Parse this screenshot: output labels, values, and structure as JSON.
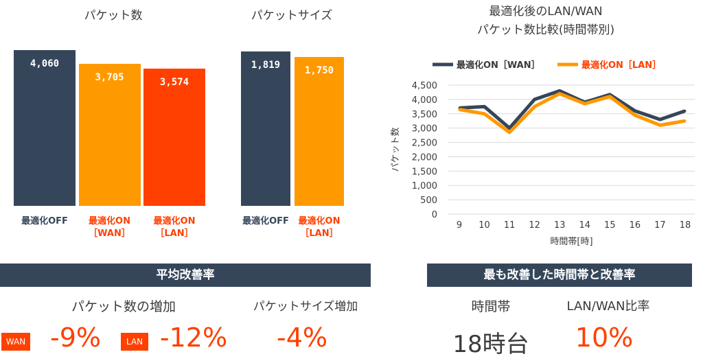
{
  "colors": {
    "dark": "#36465a",
    "orange": "#ff9900",
    "red": "#ff4000"
  },
  "chart_data": [
    {
      "type": "bar",
      "title": "パケット数",
      "categories": [
        "最適化OFF",
        "最適化ON\n［WAN］",
        "最適化ON\n［LAN］"
      ],
      "values": [
        4060,
        3705,
        3574
      ],
      "value_labels": [
        "4,060",
        "3,705",
        "3,574"
      ],
      "ylim": [
        0,
        4200
      ]
    },
    {
      "type": "bar",
      "title": "パケットサイズ",
      "categories": [
        "最適化OFF",
        "最適化ON\n［LAN］"
      ],
      "values": [
        1819,
        1750
      ],
      "value_labels": [
        "1,819",
        "1,750"
      ],
      "ylim": [
        0,
        1880
      ]
    },
    {
      "type": "line",
      "title": "最適化後のLAN/WAN\nパケット数比較(時間帯別)",
      "xlabel": "時間帯[時]",
      "ylabel": "パケット数",
      "x": [
        9,
        10,
        11,
        12,
        13,
        14,
        15,
        16,
        17,
        18
      ],
      "ylim": [
        0,
        4500
      ],
      "yticks": [
        "0",
        "500",
        "1,000",
        "1,500",
        "2,000",
        "2,500",
        "3,000",
        "3,500",
        "4,000",
        "4,500"
      ],
      "grid": true,
      "legend_position": "top",
      "series": [
        {
          "name": "最適化ON［WAN］",
          "values": [
            3700,
            3750,
            3000,
            4000,
            4300,
            3900,
            4170,
            3600,
            3300,
            3600
          ]
        },
        {
          "name": "最適化ON［LAN］",
          "values": [
            3650,
            3500,
            2850,
            3750,
            4200,
            3850,
            4100,
            3450,
            3100,
            3250
          ]
        }
      ]
    }
  ],
  "summary_left": {
    "banner": "平均改善率",
    "packet_count_label": "パケット数の増加",
    "packet_size_label": "パケットサイズ増加",
    "wan_tag": "WAN",
    "wan_value": "-9%",
    "lan_tag": "LAN",
    "lan_value": "-12%",
    "size_value": "-4%"
  },
  "summary_right": {
    "banner": "最も改善した時間帯と改善率",
    "time_label": "時間帯",
    "ratio_label": "LAN/WAN比率",
    "time_value": "18時台",
    "ratio_value": "10%"
  }
}
